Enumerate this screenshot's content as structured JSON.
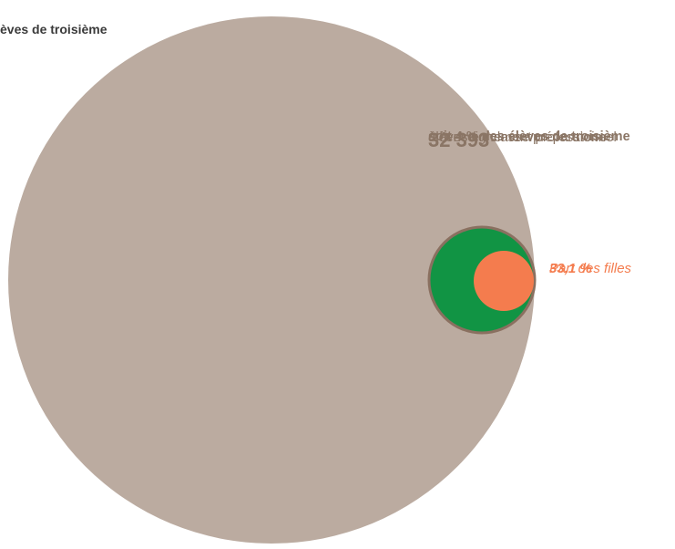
{
  "colors": {
    "total_circle": "#bbaba0",
    "prep_circle": "#119444",
    "prep_circle_stroke": "#8a7060",
    "girls_circle": "#f47c4e",
    "dark_text": "#3a3a3a",
    "prep_text": "#8a7565",
    "girls_text": "#f47c4e"
  },
  "total_label": "èves de troisième",
  "prep": {
    "count": "32 393",
    "line1": "élèves en classe préparatoire",
    "line2": "à l’enseignement professionnel",
    "share": "soit 4 % des élèves de troisième"
  },
  "girls": {
    "label": "Part des filles",
    "value": "33,1 %"
  },
  "chart_data": {
    "type": "proportional-circles",
    "circles": [
      {
        "name": "élèves de troisième",
        "share_of_total": 1.0
      },
      {
        "name": "élèves en classe préparatoire à l’enseignement professionnel",
        "count": 32393,
        "share_of_total": 0.04
      },
      {
        "name": "Part des filles",
        "share_of_prep": 0.331
      }
    ]
  }
}
